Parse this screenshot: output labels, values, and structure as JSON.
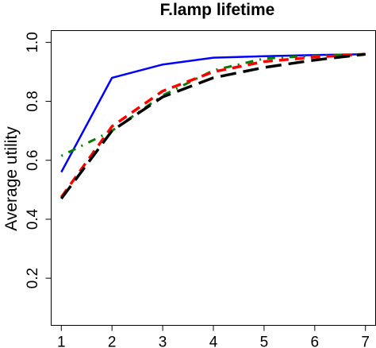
{
  "chart_data": {
    "type": "line",
    "title": "F.lamp lifetime",
    "xlabel": "",
    "ylabel": "Average utility",
    "x": [
      1,
      2,
      3,
      4,
      5,
      6,
      7
    ],
    "xlim": [
      0.8,
      7.2
    ],
    "ylim": [
      0.04,
      1.04
    ],
    "xticks": [
      "1",
      "2",
      "3",
      "4",
      "5",
      "6",
      "7"
    ],
    "yticks": [
      0.2,
      0.4,
      0.6,
      0.8,
      1.0
    ],
    "ytick_labels": [
      "0.2",
      "0.4",
      "0.6",
      "0.8",
      "1.0"
    ],
    "grid": false,
    "legend": "none",
    "series": [
      {
        "color": "#0000ff",
        "dash": "solid",
        "values": [
          0.56,
          0.88,
          0.925,
          0.948,
          0.953,
          0.957,
          0.96
        ]
      },
      {
        "color": "#008000",
        "dash": "dotdash",
        "values": [
          0.615,
          0.7,
          0.82,
          0.905,
          0.945,
          0.955,
          0.96
        ]
      },
      {
        "color": "#ff0000",
        "dash": "dashed",
        "values": [
          0.475,
          0.715,
          0.835,
          0.9,
          0.935,
          0.95,
          0.96
        ]
      },
      {
        "color": "#000000",
        "dash": "longdash",
        "values": [
          0.47,
          0.7,
          0.815,
          0.88,
          0.915,
          0.94,
          0.96
        ]
      }
    ]
  }
}
